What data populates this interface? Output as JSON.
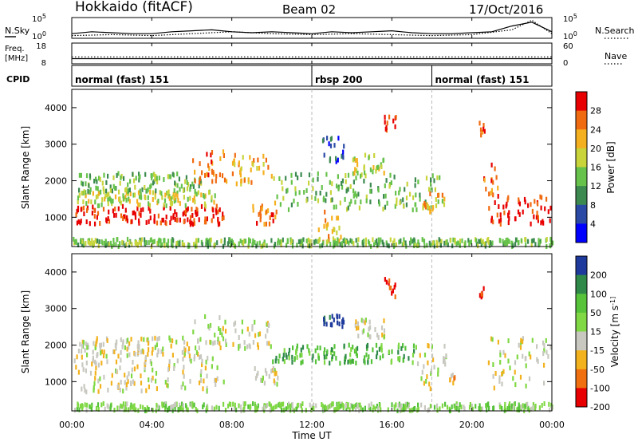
{
  "header": {
    "station": "Hokkaido (fitACF)",
    "beam": "Beam 02",
    "date": "17/Oct/2016"
  },
  "chart_data": [
    {
      "type": "line",
      "panel": "noise",
      "left_label": "N.Sky",
      "right_label": "N.Search",
      "left_ticks": [
        "10^5",
        "10^0"
      ],
      "right_ticks": [
        "10^5",
        "10^0"
      ],
      "series": [
        {
          "name": "N.Sky",
          "style": "solid",
          "x": [
            0,
            1,
            2,
            3,
            4,
            5,
            6,
            7,
            8,
            9,
            10,
            11,
            12,
            13,
            14,
            15,
            16,
            17,
            18,
            19,
            20,
            21,
            22,
            23,
            24
          ],
          "y": [
            0.2,
            0.3,
            0.25,
            0.2,
            0.2,
            0.3,
            0.35,
            0.4,
            0.3,
            0.25,
            0.3,
            0.25,
            0.2,
            0.3,
            0.25,
            0.3,
            0.35,
            0.25,
            0.2,
            0.2,
            0.25,
            0.3,
            0.6,
            0.8,
            0.3
          ]
        },
        {
          "name": "N.Search",
          "style": "dotted",
          "x": [
            0,
            2,
            4,
            6,
            8,
            10,
            12,
            14,
            16,
            18,
            20,
            22,
            23,
            24
          ],
          "y": [
            0.1,
            0.15,
            0.1,
            0.2,
            0.3,
            0.2,
            0.15,
            0.2,
            0.15,
            0.1,
            0.15,
            0.4,
            0.9,
            0.2
          ]
        }
      ]
    },
    {
      "type": "line",
      "panel": "frequency",
      "left_label_top": "Freq.",
      "left_label_bottom": "[MHz]",
      "left_ticks": [
        "18",
        "8"
      ],
      "right_ticks": [
        "60",
        "0"
      ],
      "right_label": "Nave",
      "series": [
        {
          "name": "Freq.",
          "style": "solid",
          "value": 10.5
        },
        {
          "name": "Nave",
          "style": "dotted",
          "value": 20
        }
      ]
    },
    {
      "type": "table",
      "panel": "cpid",
      "label": "CPID",
      "segments": [
        {
          "start": 0,
          "end": 12,
          "text": "normal (fast) 151"
        },
        {
          "start": 12,
          "end": 18,
          "text": "rbsp 200"
        },
        {
          "start": 18,
          "end": 24,
          "text": "normal (fast) 151"
        }
      ]
    },
    {
      "type": "heatmap",
      "panel": "power",
      "ylabel": "Slant Range [km]",
      "yticks": [
        1000,
        2000,
        3000,
        4000
      ],
      "ylim": [
        200,
        4500
      ],
      "colorbar_label": "Power [dB]",
      "colorbar_ticks": [
        4,
        8,
        12,
        16,
        20,
        24,
        28
      ],
      "colors": [
        "#0000ff",
        "#2a4aa6",
        "#3c8a50",
        "#66c24a",
        "#c8d43a",
        "#f5b020",
        "#f06a10",
        "#e80000"
      ],
      "bands": [
        {
          "x0": 0.1,
          "x1": 7.6,
          "r0": 800,
          "r1": 1300,
          "level": 7
        },
        {
          "x0": 0.2,
          "x1": 7.2,
          "r0": 1300,
          "r1": 1700,
          "level": 4
        },
        {
          "x0": 0.3,
          "x1": 6.5,
          "r0": 1700,
          "r1": 2200,
          "level": 3
        },
        {
          "x0": 6.0,
          "x1": 7.7,
          "r0": 1900,
          "r1": 2800,
          "level": 6
        },
        {
          "x0": 8.0,
          "x1": 10.0,
          "r0": 1900,
          "r1": 2700,
          "level": 5
        },
        {
          "x0": 9.0,
          "x1": 10.3,
          "r0": 700,
          "r1": 1400,
          "level": 6
        },
        {
          "x0": 10.0,
          "x1": 18.5,
          "r0": 1200,
          "r1": 2200,
          "level": 3
        },
        {
          "x0": 12.3,
          "x1": 13.5,
          "r0": 300,
          "r1": 1300,
          "level": 5
        },
        {
          "x0": 14.0,
          "x1": 15.6,
          "r0": 2200,
          "r1": 2700,
          "level": 4
        },
        {
          "x0": 15.6,
          "x1": 16.2,
          "r0": 3300,
          "r1": 3800,
          "level": 7
        },
        {
          "x0": 12.5,
          "x1": 13.6,
          "r0": 2500,
          "r1": 3200,
          "level": 1
        },
        {
          "x0": 17.5,
          "x1": 18.6,
          "r0": 1100,
          "r1": 1700,
          "level": 5
        },
        {
          "x0": 20.8,
          "x1": 23.9,
          "r0": 800,
          "r1": 1600,
          "level": 7
        },
        {
          "x0": 20.5,
          "x1": 21.3,
          "r0": 1600,
          "r1": 2500,
          "level": 6
        },
        {
          "x0": 20.3,
          "x1": 20.7,
          "r0": 3200,
          "r1": 3600,
          "level": 6
        },
        {
          "x0": 0.0,
          "x1": 24.0,
          "r0": 200,
          "r1": 400,
          "level": 3
        }
      ]
    },
    {
      "type": "heatmap",
      "panel": "velocity",
      "ylabel": "Slant Range [km]",
      "yticks": [
        1000,
        2000,
        3000,
        4000
      ],
      "ylim": [
        200,
        4500
      ],
      "colorbar_label": "Velocity [m s^-1]",
      "colorbar_ticks": [
        200,
        100,
        50,
        15,
        -15,
        -50,
        -100,
        -200
      ],
      "colors": [
        "#1e3a9c",
        "#2f8a4a",
        "#56c33a",
        "#7fd844",
        "#c8c8c0",
        "#f2b21e",
        "#f07010",
        "#e80000"
      ],
      "bands": [
        {
          "x0": 0.1,
          "x1": 7.6,
          "r0": 700,
          "r1": 1700,
          "level": 4
        },
        {
          "x0": 0.3,
          "x1": 6.5,
          "r0": 1700,
          "r1": 2200,
          "level": 4
        },
        {
          "x0": 6.0,
          "x1": 7.7,
          "r0": 1900,
          "r1": 2800,
          "level": 4
        },
        {
          "x0": 8.0,
          "x1": 10.0,
          "r0": 1900,
          "r1": 2700,
          "level": 4
        },
        {
          "x0": 9.0,
          "x1": 10.3,
          "r0": 900,
          "r1": 1400,
          "level": 4
        },
        {
          "x0": 10.0,
          "x1": 17.2,
          "r0": 1500,
          "r1": 2000,
          "level": 2
        },
        {
          "x0": 14.0,
          "x1": 15.6,
          "r0": 2200,
          "r1": 2700,
          "level": 4
        },
        {
          "x0": 15.6,
          "x1": 16.2,
          "r0": 3300,
          "r1": 3800,
          "level": 7
        },
        {
          "x0": 12.5,
          "x1": 13.6,
          "r0": 2500,
          "r1": 2800,
          "level": 0
        },
        {
          "x0": 17.2,
          "x1": 18.8,
          "r0": 800,
          "r1": 2000,
          "level": 4
        },
        {
          "x0": 18.8,
          "x1": 19.2,
          "r0": 800,
          "r1": 1300,
          "level": 5
        },
        {
          "x0": 20.8,
          "x1": 23.9,
          "r0": 800,
          "r1": 2200,
          "level": 4
        },
        {
          "x0": 20.3,
          "x1": 20.7,
          "r0": 3200,
          "r1": 3600,
          "level": 7
        },
        {
          "x0": 0.0,
          "x1": 24.0,
          "r0": 200,
          "r1": 400,
          "level": 3
        }
      ]
    }
  ],
  "x_axis": {
    "xlabel": "Time UT",
    "xlim": [
      0,
      24
    ],
    "tick_values": [
      0,
      4,
      8,
      12,
      16,
      20,
      24
    ],
    "tick_labels": [
      "00:00",
      "04:00",
      "08:00",
      "12:00",
      "16:00",
      "20:00",
      "00:00"
    ]
  }
}
